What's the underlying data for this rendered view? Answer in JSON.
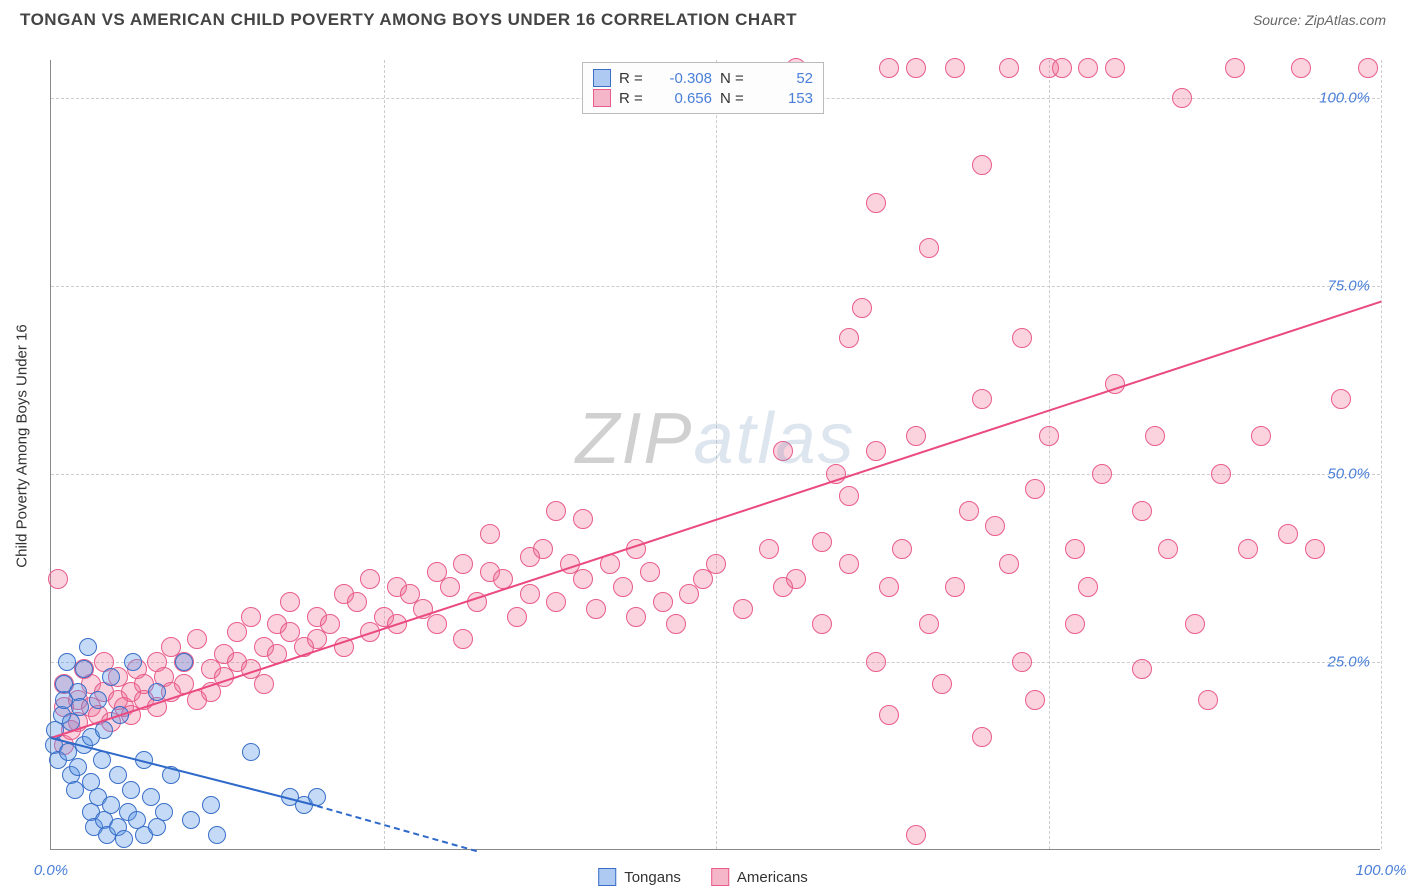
{
  "title": "TONGAN VS AMERICAN CHILD POVERTY AMONG BOYS UNDER 16 CORRELATION CHART",
  "source_label": "Source: ",
  "source_value": "ZipAtlas.com",
  "ylabel": "Child Poverty Among Boys Under 16",
  "watermark": {
    "zip": "ZIP",
    "atlas": "atlas"
  },
  "chart": {
    "type": "scatter",
    "xlim": [
      0,
      100
    ],
    "ylim": [
      0,
      105
    ],
    "xtick_0": "0.0%",
    "xtick_100": "100.0%",
    "yticks": [
      {
        "v": 25,
        "label": "25.0%"
      },
      {
        "v": 50,
        "label": "50.0%"
      },
      {
        "v": 75,
        "label": "75.0%"
      },
      {
        "v": 100,
        "label": "100.0%"
      }
    ],
    "grid_color": "#cccccc",
    "axis_color": "#888888",
    "series": {
      "tongans": {
        "legend_label": "Tongans",
        "fill": "rgba(90,150,230,0.35)",
        "stroke": "#3a6fc8",
        "swatch_fill": "#aecaf2",
        "swatch_border": "#3a6fc8",
        "line_color": "#2f69c9",
        "marker_r": 9,
        "R": "-0.308",
        "N": "52",
        "trend": {
          "x1": 0,
          "y1": 15,
          "x2": 20,
          "y2": 6,
          "dash_to_x": 32,
          "dash_to_y": 0
        },
        "points": [
          [
            0.2,
            14
          ],
          [
            0.3,
            16
          ],
          [
            0.5,
            12
          ],
          [
            0.8,
            18
          ],
          [
            1,
            20
          ],
          [
            1,
            22
          ],
          [
            1.2,
            25
          ],
          [
            1.3,
            13
          ],
          [
            1.5,
            10
          ],
          [
            1.5,
            17
          ],
          [
            1.8,
            8
          ],
          [
            2,
            11
          ],
          [
            2,
            21
          ],
          [
            2.2,
            19
          ],
          [
            2.5,
            14
          ],
          [
            2.5,
            24
          ],
          [
            2.8,
            27
          ],
          [
            3,
            5
          ],
          [
            3,
            9
          ],
          [
            3,
            15
          ],
          [
            3.2,
            3
          ],
          [
            3.5,
            7
          ],
          [
            3.5,
            20
          ],
          [
            3.8,
            12
          ],
          [
            4,
            4
          ],
          [
            4,
            16
          ],
          [
            4.2,
            2
          ],
          [
            4.5,
            23
          ],
          [
            4.5,
            6
          ],
          [
            5,
            3
          ],
          [
            5,
            10
          ],
          [
            5.2,
            18
          ],
          [
            5.5,
            1.5
          ],
          [
            5.8,
            5
          ],
          [
            6,
            8
          ],
          [
            6.2,
            25
          ],
          [
            6.5,
            4
          ],
          [
            7,
            12
          ],
          [
            7,
            2
          ],
          [
            7.5,
            7
          ],
          [
            8,
            3
          ],
          [
            8,
            21
          ],
          [
            8.5,
            5
          ],
          [
            9,
            10
          ],
          [
            10,
            25
          ],
          [
            10.5,
            4
          ],
          [
            12,
            6
          ],
          [
            12.5,
            2
          ],
          [
            15,
            13
          ],
          [
            18,
            7
          ],
          [
            19,
            6
          ],
          [
            20,
            7
          ]
        ]
      },
      "americans": {
        "legend_label": "Americans",
        "fill": "rgba(240,110,150,0.30)",
        "stroke": "#e85c8c",
        "swatch_fill": "#f6b6c9",
        "swatch_border": "#e85c8c",
        "line_color": "#ea4a80",
        "marker_r": 10,
        "R": "0.656",
        "N": "153",
        "trend": {
          "x1": 0,
          "y1": 15,
          "x2": 100,
          "y2": 73
        },
        "points": [
          [
            0.5,
            36
          ],
          [
            1,
            14
          ],
          [
            1,
            19
          ],
          [
            1,
            22
          ],
          [
            1.5,
            16
          ],
          [
            2,
            20
          ],
          [
            2,
            17
          ],
          [
            2.5,
            24
          ],
          [
            3,
            22
          ],
          [
            3,
            19
          ],
          [
            3.5,
            18
          ],
          [
            4,
            21
          ],
          [
            4,
            25
          ],
          [
            4.5,
            17
          ],
          [
            5,
            20
          ],
          [
            5,
            23
          ],
          [
            5.5,
            19
          ],
          [
            6,
            21
          ],
          [
            6,
            18
          ],
          [
            6.5,
            24
          ],
          [
            7,
            22
          ],
          [
            7,
            20
          ],
          [
            8,
            25
          ],
          [
            8,
            19
          ],
          [
            8.5,
            23
          ],
          [
            9,
            21
          ],
          [
            9,
            27
          ],
          [
            10,
            22
          ],
          [
            10,
            25
          ],
          [
            11,
            20
          ],
          [
            11,
            28
          ],
          [
            12,
            24
          ],
          [
            12,
            21
          ],
          [
            13,
            26
          ],
          [
            13,
            23
          ],
          [
            14,
            29
          ],
          [
            14,
            25
          ],
          [
            15,
            24
          ],
          [
            15,
            31
          ],
          [
            16,
            27
          ],
          [
            16,
            22
          ],
          [
            17,
            30
          ],
          [
            17,
            26
          ],
          [
            18,
            29
          ],
          [
            18,
            33
          ],
          [
            19,
            27
          ],
          [
            20,
            31
          ],
          [
            20,
            28
          ],
          [
            21,
            30
          ],
          [
            22,
            34
          ],
          [
            22,
            27
          ],
          [
            23,
            33
          ],
          [
            24,
            29
          ],
          [
            24,
            36
          ],
          [
            25,
            31
          ],
          [
            26,
            35
          ],
          [
            26,
            30
          ],
          [
            27,
            34
          ],
          [
            28,
            32
          ],
          [
            29,
            37
          ],
          [
            29,
            30
          ],
          [
            30,
            35
          ],
          [
            31,
            38
          ],
          [
            31,
            28
          ],
          [
            32,
            33
          ],
          [
            33,
            37
          ],
          [
            33,
            42
          ],
          [
            34,
            36
          ],
          [
            35,
            31
          ],
          [
            36,
            39
          ],
          [
            36,
            34
          ],
          [
            37,
            40
          ],
          [
            38,
            45
          ],
          [
            38,
            33
          ],
          [
            39,
            38
          ],
          [
            40,
            36
          ],
          [
            40,
            44
          ],
          [
            41,
            32
          ],
          [
            42,
            38
          ],
          [
            43,
            35
          ],
          [
            44,
            31
          ],
          [
            44,
            40
          ],
          [
            45,
            37
          ],
          [
            46,
            33
          ],
          [
            47,
            30
          ],
          [
            48,
            34
          ],
          [
            49,
            36
          ],
          [
            50,
            38
          ],
          [
            52,
            32
          ],
          [
            54,
            40
          ],
          [
            55,
            35
          ],
          [
            55,
            53
          ],
          [
            56,
            36
          ],
          [
            56,
            104
          ],
          [
            58,
            30
          ],
          [
            59,
            50
          ],
          [
            60,
            38
          ],
          [
            60,
            68
          ],
          [
            61,
            72
          ],
          [
            62,
            53
          ],
          [
            62,
            25
          ],
          [
            62,
            86
          ],
          [
            63,
            104
          ],
          [
            63,
            18
          ],
          [
            64,
            40
          ],
          [
            65,
            104
          ],
          [
            65,
            55
          ],
          [
            66,
            30
          ],
          [
            66,
            80
          ],
          [
            68,
            35
          ],
          [
            68,
            104
          ],
          [
            69,
            45
          ],
          [
            70,
            91
          ],
          [
            70,
            60
          ],
          [
            71,
            43
          ],
          [
            72,
            104
          ],
          [
            73,
            68
          ],
          [
            73,
            25
          ],
          [
            74,
            20
          ],
          [
            75,
            55
          ],
          [
            75,
            104
          ],
          [
            76,
            104
          ],
          [
            77,
            40
          ],
          [
            77,
            30
          ],
          [
            78,
            104
          ],
          [
            79,
            50
          ],
          [
            80,
            62
          ],
          [
            80,
            104
          ],
          [
            82,
            45
          ],
          [
            82,
            24
          ],
          [
            83,
            55
          ],
          [
            84,
            40
          ],
          [
            85,
            100
          ],
          [
            86,
            30
          ],
          [
            87,
            20
          ],
          [
            88,
            50
          ],
          [
            89,
            104
          ],
          [
            90,
            40
          ],
          [
            91,
            55
          ],
          [
            93,
            42
          ],
          [
            94,
            104
          ],
          [
            95,
            40
          ],
          [
            97,
            60
          ],
          [
            99,
            104
          ],
          [
            65,
            2
          ],
          [
            60,
            47
          ],
          [
            58,
            41
          ],
          [
            63,
            35
          ],
          [
            67,
            22
          ],
          [
            70,
            15
          ],
          [
            72,
            38
          ],
          [
            74,
            48
          ],
          [
            78,
            35
          ]
        ]
      }
    }
  },
  "legend_top_labels": {
    "R": "R =",
    "N": "N ="
  }
}
